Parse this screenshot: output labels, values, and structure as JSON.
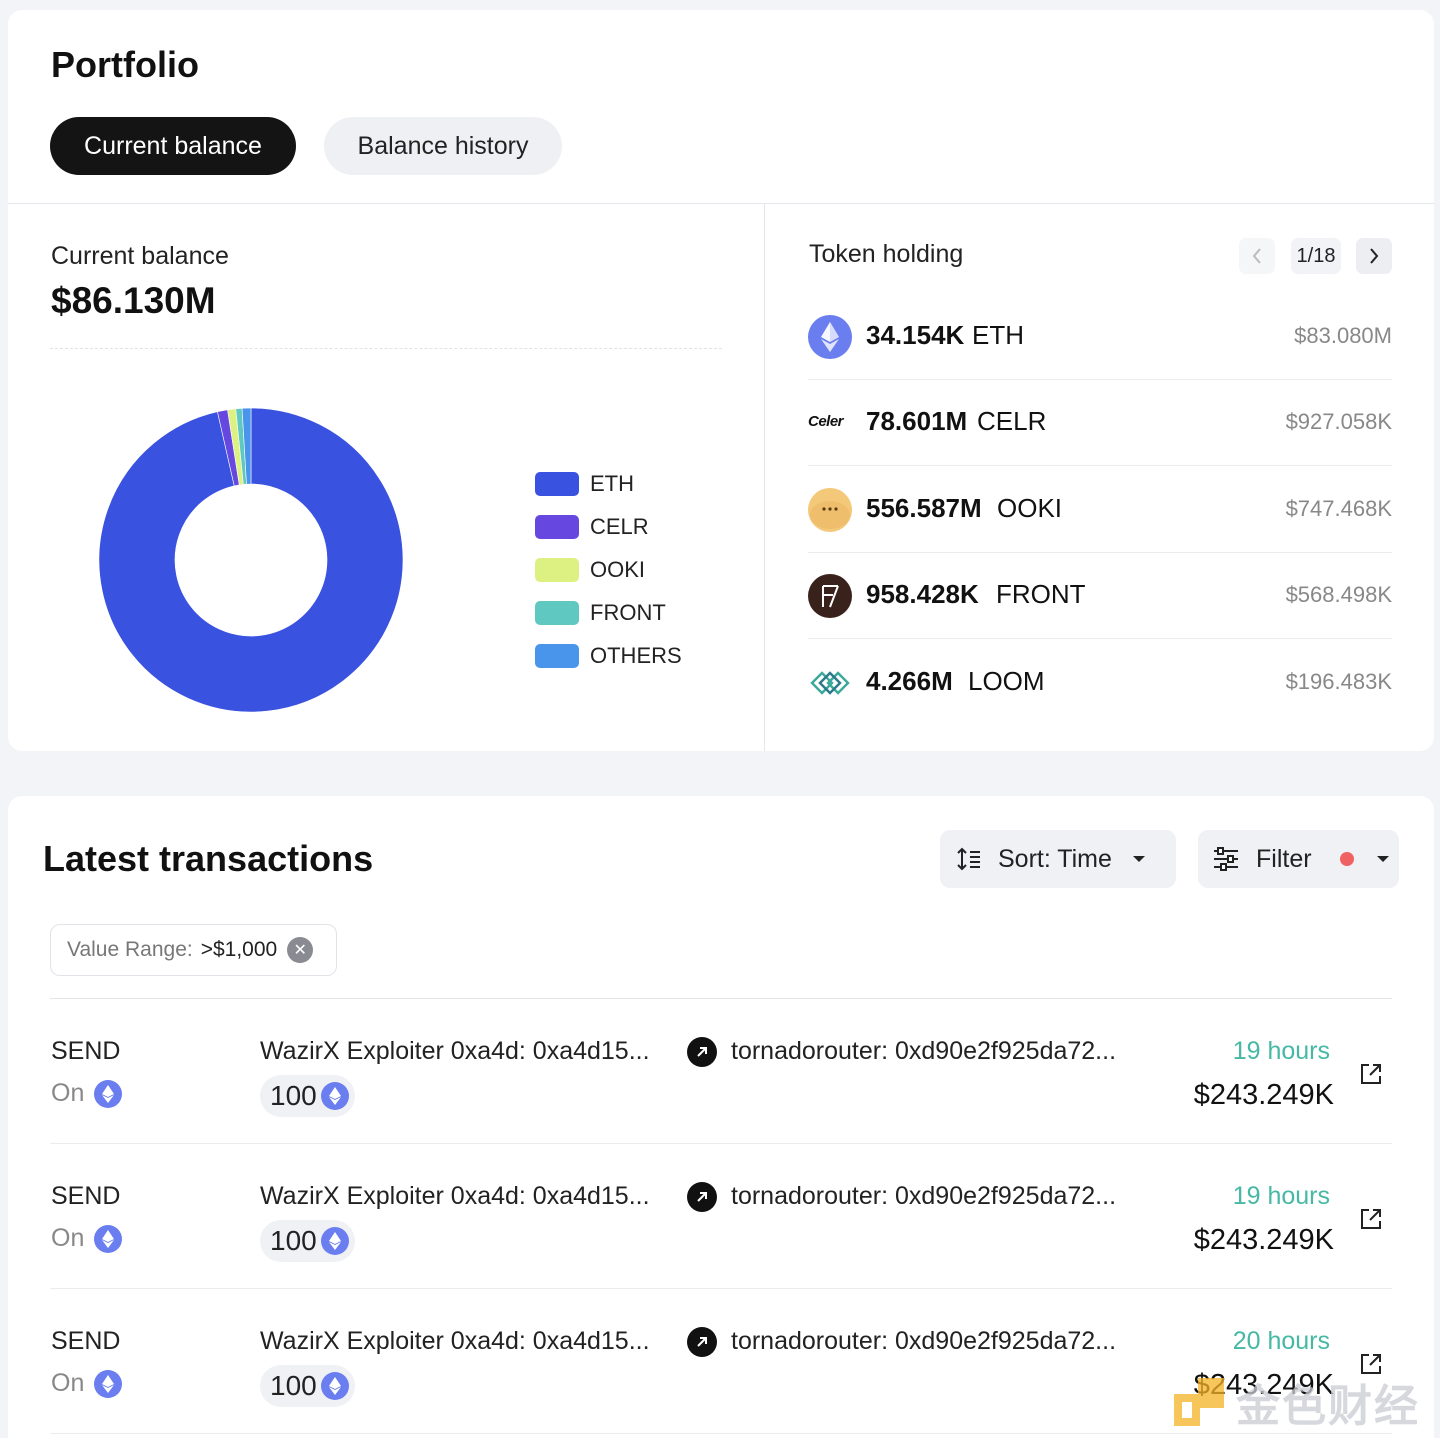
{
  "portfolio": {
    "title": "Portfolio",
    "tabs": [
      {
        "label": "Current balance",
        "active": true
      },
      {
        "label": "Balance history",
        "active": false
      }
    ],
    "current_balance": {
      "label": "Current balance",
      "value": "$86.130M"
    },
    "legend": [
      {
        "label": "ETH",
        "color": "#3a52e0"
      },
      {
        "label": "CELR",
        "color": "#6648e0"
      },
      {
        "label": "OOKI",
        "color": "#ddf082"
      },
      {
        "label": "FRONT",
        "color": "#5ec8c1"
      },
      {
        "label": "OTHERS",
        "color": "#4a95ec"
      }
    ],
    "token_holding": {
      "title": "Token holding",
      "page": "1/18",
      "tokens": [
        {
          "amount": "34.154K",
          "symbol": "ETH",
          "usd": "$83.080M",
          "icon": "eth-icon"
        },
        {
          "amount": "78.601M",
          "symbol": "CELR",
          "usd": "$927.058K",
          "icon": "celer-logo",
          "icon_text": "Celer"
        },
        {
          "amount": "556.587M",
          "symbol": "OOKI",
          "usd": "$747.468K",
          "icon": "ooki-icon"
        },
        {
          "amount": "958.428K",
          "symbol": "FRONT",
          "usd": "$568.498K",
          "icon": "front-icon"
        },
        {
          "amount": "4.266M",
          "symbol": "LOOM",
          "usd": "$196.483K",
          "icon": "loom-icon"
        }
      ]
    }
  },
  "chart_data": {
    "type": "pie",
    "categories": [
      "ETH",
      "CELR",
      "OOKI",
      "FRONT",
      "OTHERS"
    ],
    "values": [
      83.08,
      0.927,
      0.747,
      0.568,
      0.808
    ],
    "unit": "$M",
    "colors": [
      "#3a52e0",
      "#6648e0",
      "#ddf082",
      "#5ec8c1",
      "#4a95ec"
    ],
    "donut": true,
    "legend_position": "right"
  },
  "transactions": {
    "title": "Latest transactions",
    "sort_label": "Sort: Time",
    "filter_label": "Filter",
    "filter_active_color": "#f06262",
    "chip": {
      "label": "Value Range:",
      "value": ">$1,000"
    },
    "rows": [
      {
        "type": "SEND",
        "chain": "On",
        "from": "WazirX Exploiter 0xa4d: 0xa4d15...",
        "to": "tornadorouter: 0xd90e2f925da72...",
        "amount": "100",
        "time": "19 hours",
        "usd": "$243.249K"
      },
      {
        "type": "SEND",
        "chain": "On",
        "from": "WazirX Exploiter 0xa4d: 0xa4d15...",
        "to": "tornadorouter: 0xd90e2f925da72...",
        "amount": "100",
        "time": "19 hours",
        "usd": "$243.249K"
      },
      {
        "type": "SEND",
        "chain": "On",
        "from": "WazirX Exploiter 0xa4d: 0xa4d15...",
        "to": "tornadorouter: 0xd90e2f925da72...",
        "amount": "100",
        "time": "20 hours",
        "usd": "$243.249K"
      }
    ]
  },
  "watermark": {
    "text": "金色财经"
  }
}
